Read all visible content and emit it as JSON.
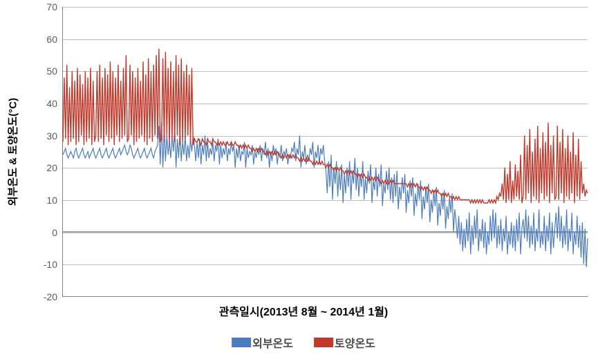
{
  "chart": {
    "type": "line",
    "background_color": "#ffffff",
    "grid_color": "#c0c0c0",
    "axis_color": "#808080",
    "ylim": [
      -20,
      70
    ],
    "ytick_step": 10,
    "yticks": [
      -20,
      -10,
      0,
      10,
      20,
      30,
      40,
      50,
      60,
      70
    ],
    "y_label": "외부온도 & 토양온도(°C)",
    "y_label_fontsize": 15,
    "x_label": "관측일시(2013년 8월 ~ 2014년 1월)",
    "x_label_fontsize": 16,
    "tick_fontsize": 14,
    "tick_color": "#5a5a5a",
    "series": [
      {
        "name": "외부온도",
        "color": "#4a7cbf",
        "line_width": 1.2,
        "values": [
          24,
          25,
          26,
          24,
          23,
          24,
          25,
          24,
          23,
          25,
          26,
          24,
          23,
          24,
          25,
          26,
          24,
          23,
          24,
          25,
          23,
          24,
          25,
          26,
          24,
          23,
          24,
          25,
          26,
          24,
          23,
          24,
          25,
          26,
          24,
          23,
          24,
          25,
          26,
          24,
          23,
          24,
          25,
          26,
          24,
          25,
          26,
          27,
          25,
          24,
          25,
          27,
          26,
          24,
          23,
          24,
          25,
          26,
          24,
          23,
          24,
          25,
          26,
          24,
          23,
          24,
          25,
          26,
          24,
          23,
          25,
          26,
          27,
          33,
          21,
          34,
          20,
          32,
          22,
          30,
          24,
          28,
          23,
          30,
          25,
          32,
          20,
          29,
          23,
          31,
          22,
          28,
          24,
          30,
          22,
          27,
          23,
          29,
          25,
          30,
          27,
          22,
          28,
          23,
          29,
          21,
          27,
          24,
          30,
          22,
          28,
          23,
          26,
          24,
          28,
          22,
          27,
          25,
          29,
          21,
          27,
          23,
          26,
          24,
          28,
          22,
          26,
          24,
          28,
          25,
          27,
          20,
          26,
          23,
          27,
          22,
          25,
          24,
          28,
          20,
          26,
          23,
          25,
          24,
          27,
          21,
          25,
          23,
          26,
          24,
          27,
          22,
          26,
          24,
          28,
          23,
          26,
          20,
          25,
          22,
          27,
          24,
          26,
          21,
          25,
          23,
          27,
          22,
          25,
          24,
          26,
          21,
          24,
          23,
          26,
          25,
          28,
          22,
          26,
          24,
          30,
          20,
          25,
          23,
          27,
          21,
          24,
          22,
          26,
          24,
          28,
          20,
          25,
          23,
          27,
          21,
          26,
          24,
          27,
          22,
          19,
          12,
          22,
          14,
          24,
          10,
          20,
          15,
          22,
          11,
          19,
          13,
          21,
          9,
          18,
          12,
          20,
          14,
          22,
          10,
          19,
          15,
          23,
          13,
          20,
          11,
          18,
          14,
          22,
          10,
          17,
          12,
          19,
          15,
          21,
          9,
          16,
          13,
          20,
          11,
          18,
          14,
          21,
          8,
          15,
          12,
          19,
          13,
          20,
          10,
          17,
          9,
          18,
          11,
          19,
          7,
          14,
          10,
          17,
          12,
          18,
          6,
          13,
          9,
          16,
          11,
          17,
          5,
          12,
          8,
          15,
          10,
          16,
          4,
          11,
          7,
          14,
          9,
          15,
          3,
          10,
          6,
          13,
          8,
          14,
          2,
          9,
          5,
          12,
          7,
          13,
          1,
          8,
          4,
          11,
          6,
          12,
          0,
          7,
          3,
          -2,
          5,
          -4,
          3,
          -6,
          1,
          -5,
          4,
          -3,
          6,
          -7,
          2,
          -4,
          5,
          -2,
          7,
          -6,
          1,
          -3,
          4,
          -5,
          3,
          -7,
          0,
          -4,
          5,
          -3,
          7,
          -2,
          6,
          -5,
          2,
          -4,
          4,
          -6,
          1,
          -3,
          5,
          -7,
          0,
          -4,
          3,
          -5,
          2,
          -6,
          4,
          -3,
          6,
          -7,
          1,
          4,
          -2,
          7,
          -3,
          5,
          -5,
          2,
          -4,
          6,
          -6,
          1,
          -3,
          7,
          -5,
          0,
          -4,
          5,
          -6,
          2,
          -3,
          6,
          -7,
          3,
          -5,
          1,
          6,
          -2,
          8,
          -3,
          5,
          -5,
          2,
          -4,
          7,
          -6,
          1,
          -3,
          6,
          -7,
          0,
          -4,
          5,
          -5,
          2,
          -8,
          3,
          -10,
          1,
          -11,
          -2
        ]
      },
      {
        "name": "토양온도",
        "color": "#c0392b",
        "line_width": 1.4,
        "values": [
          28,
          48,
          29,
          52,
          27,
          45,
          28,
          50,
          29,
          47,
          27,
          51,
          28,
          49,
          30,
          46,
          27,
          50,
          28,
          48,
          29,
          51,
          27,
          47,
          28,
          30,
          50,
          28,
          52,
          29,
          48,
          27,
          51,
          30,
          49,
          28,
          53,
          29,
          50,
          27,
          48,
          30,
          52,
          28,
          47,
          29,
          51,
          30,
          55,
          28,
          29,
          52,
          30,
          50,
          27,
          48,
          28,
          51,
          29,
          47,
          30,
          53,
          28,
          49,
          27,
          54,
          29,
          50,
          28,
          52,
          30,
          55,
          29,
          57,
          28,
          29,
          54,
          28,
          56,
          30,
          51,
          27,
          53,
          29,
          50,
          28,
          55,
          30,
          52,
          27,
          54,
          28,
          50,
          29,
          52,
          30,
          49,
          28,
          51,
          27,
          29,
          28,
          28,
          29,
          28,
          27,
          29,
          28,
          28,
          27,
          29,
          28,
          28,
          27,
          29,
          28,
          28,
          27,
          28,
          27,
          28,
          27,
          28,
          27,
          27,
          28,
          27,
          27,
          28,
          27,
          27,
          28,
          27,
          27,
          26,
          27,
          26,
          27,
          26,
          27,
          26,
          27,
          26,
          26,
          25,
          26,
          25,
          26,
          25,
          26,
          25,
          26,
          25,
          25,
          24,
          25,
          24,
          25,
          24,
          25,
          24,
          25,
          24,
          25,
          24,
          24,
          23,
          24,
          23,
          24,
          23,
          24,
          23,
          24,
          23,
          24,
          23,
          24,
          23,
          23,
          22,
          23,
          22,
          23,
          22,
          23,
          22,
          23,
          22,
          22,
          21,
          22,
          21,
          22,
          21,
          22,
          21,
          22,
          21,
          21,
          20,
          21,
          20,
          21,
          20,
          20,
          19,
          20,
          19,
          20,
          19,
          20,
          19,
          19,
          18,
          19,
          18,
          19,
          18,
          19,
          18,
          19,
          18,
          18,
          17,
          18,
          17,
          18,
          17,
          18,
          17,
          17,
          16,
          17,
          16,
          17,
          16,
          17,
          16,
          17,
          16,
          16,
          15,
          16,
          15,
          16,
          15,
          16,
          15,
          16,
          15,
          16,
          15,
          15,
          15,
          15,
          15,
          15,
          15,
          15,
          15,
          15,
          14,
          15,
          14,
          15,
          14,
          15,
          14,
          15,
          14,
          14,
          13,
          14,
          13,
          14,
          13,
          14,
          13,
          13,
          12,
          13,
          12,
          13,
          12,
          13,
          12,
          12,
          11,
          12,
          11,
          12,
          11,
          12,
          11,
          11,
          10,
          11,
          10,
          11,
          10,
          11,
          10,
          10,
          10,
          10,
          10,
          10,
          10,
          10,
          9,
          10,
          9,
          10,
          9,
          10,
          9,
          10,
          9,
          10,
          9,
          9,
          9,
          9,
          10,
          9,
          10,
          9,
          10,
          9,
          11,
          10,
          12,
          11,
          15,
          10,
          20,
          9,
          18,
          10,
          22,
          9,
          16,
          10,
          21,
          11,
          19,
          10,
          24,
          9,
          11,
          30,
          10,
          27,
          12,
          32,
          9,
          25,
          11,
          29,
          10,
          33,
          9,
          26,
          12,
          31,
          10,
          28,
          11,
          34,
          9,
          27,
          12,
          30,
          10,
          11,
          33,
          10,
          28,
          12,
          32,
          9,
          26,
          11,
          30,
          10,
          25,
          12,
          31,
          9,
          24,
          11,
          29,
          10,
          22,
          12,
          15,
          11,
          13,
          12
        ]
      }
    ],
    "legend": {
      "position": "bottom",
      "items": [
        {
          "label": "외부온도",
          "color": "#4a7cbf"
        },
        {
          "label": "토양온도",
          "color": "#c0392b"
        }
      ],
      "fontsize": 16
    }
  }
}
